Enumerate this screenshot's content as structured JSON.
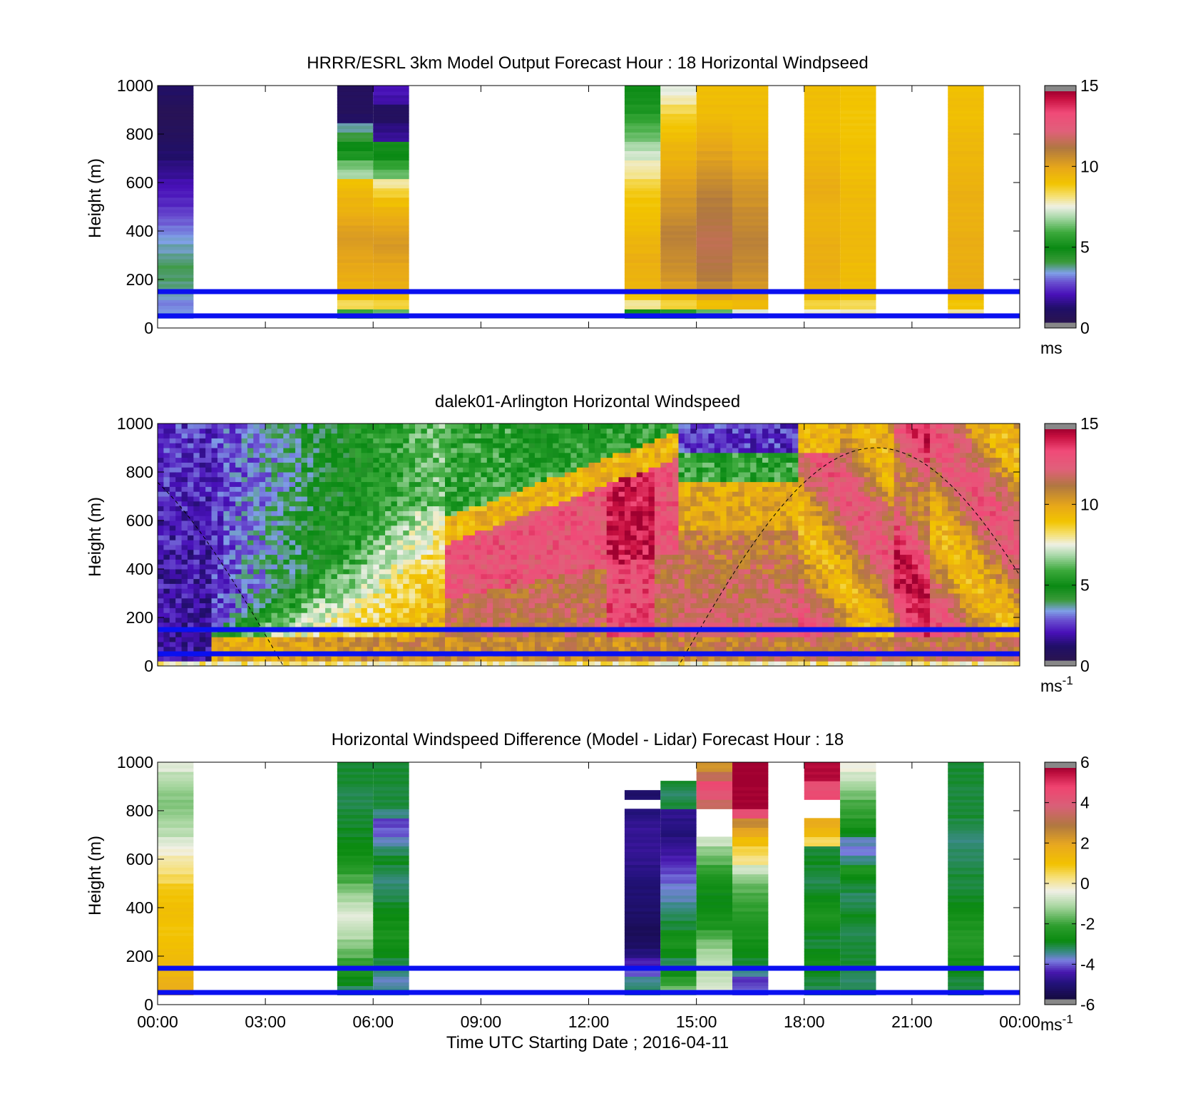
{
  "chart_data": [
    {
      "type": "heatmap",
      "title": "HRRR/ESRL 3km Model Output   Forecast Hour : 18 Horizontal Windpseed",
      "xlabel": "",
      "ylabel": "Height (m)",
      "xlim": [
        0,
        24
      ],
      "ylim": [
        0,
        1000
      ],
      "yticks": [
        "0",
        "200",
        "400",
        "600",
        "800",
        "1000"
      ],
      "colorbar": {
        "min": 0,
        "max": 15,
        "ticks": [
          "0",
          "5",
          "10",
          "15"
        ],
        "unit": "ms",
        "unit_sup": "",
        "scheme": "speed"
      },
      "reference_lines_m": [
        50,
        150
      ],
      "columns": [
        {
          "t0": 0.0,
          "t1": 1.0,
          "vals": [
            3.2,
            3.0,
            3.4,
            3.6,
            3.7,
            3.8,
            3.6,
            3.4,
            3.2,
            2.9,
            2.7,
            2.4,
            2.1,
            1.9,
            1.7,
            1.4,
            1.2,
            0.9,
            0.7,
            0.5,
            0.4,
            0.3,
            0.3,
            0.5,
            0.7
          ]
        },
        {
          "t0": 5.0,
          "t1": 6.0,
          "vals": [
            5.8,
            8.4,
            9.2,
            9.6,
            9.8,
            10.0,
            10.1,
            10.2,
            10.3,
            10.2,
            10.0,
            9.7,
            9.6,
            9.4,
            9.1,
            6.8,
            6.3,
            5.2,
            4.8,
            3.9,
            3.5,
            0.7,
            0.5,
            0.5,
            0.5
          ]
        },
        {
          "t0": 6.0,
          "t1": 7.0,
          "vals": [
            6.2,
            8.6,
            9.3,
            9.7,
            9.9,
            10.0,
            10.2,
            10.4,
            10.3,
            10.1,
            9.9,
            9.6,
            9.2,
            8.6,
            7.9,
            6.2,
            5.6,
            4.8,
            4.6,
            1.4,
            1.2,
            0.6,
            0.6,
            1.6,
            1.8
          ]
        },
        {
          "t0": 13.0,
          "t1": 14.0,
          "vals": [
            5.0,
            8.0,
            9.0,
            9.5,
            9.6,
            9.7,
            9.8,
            9.6,
            9.5,
            9.3,
            9.2,
            9.1,
            9.0,
            8.8,
            8.5,
            8.0,
            7.8,
            7.2,
            6.8,
            6.2,
            6.0,
            5.6,
            5.2,
            5.0,
            4.9
          ]
        },
        {
          "t0": 14.0,
          "t1": 15.0,
          "vals": [
            5.4,
            8.6,
            9.4,
            10.2,
            10.5,
            10.7,
            10.8,
            10.9,
            11.0,
            11.0,
            10.8,
            10.6,
            10.5,
            10.3,
            10.2,
            10.0,
            9.8,
            9.6,
            9.5,
            9.2,
            9.0,
            8.8,
            8.4,
            7.8,
            7.4
          ]
        },
        {
          "t0": 15.0,
          "t1": 16.0,
          "vals": [
            6.2,
            9.2,
            10.2,
            10.8,
            11.2,
            11.4,
            11.5,
            11.6,
            11.6,
            11.5,
            11.4,
            11.3,
            11.2,
            11.0,
            10.8,
            10.6,
            10.4,
            10.2,
            10.0,
            9.8,
            9.6,
            9.4,
            9.3,
            9.2,
            9.2
          ]
        },
        {
          "t0": 16.0,
          "t1": 17.0,
          "vals": [
            7.4,
            9.4,
            10.0,
            10.4,
            10.6,
            10.8,
            10.9,
            11.0,
            11.0,
            10.9,
            10.8,
            10.8,
            10.6,
            10.5,
            10.4,
            10.2,
            10.0,
            9.8,
            9.6,
            9.5,
            9.4,
            9.3,
            9.3,
            9.2,
            9.2
          ]
        },
        {
          "t0": 18.0,
          "t1": 19.0,
          "vals": [
            7.6,
            8.6,
            9.4,
            9.6,
            9.7,
            9.8,
            9.8,
            9.8,
            9.7,
            9.6,
            9.6,
            9.6,
            9.7,
            9.8,
            9.8,
            9.7,
            9.6,
            9.5,
            9.4,
            9.3,
            9.2,
            9.2,
            9.2,
            9.2,
            9.2
          ]
        },
        {
          "t0": 19.0,
          "t1": 20.0,
          "vals": [
            7.8,
            8.4,
            9.0,
            9.2,
            9.3,
            9.3,
            9.4,
            9.4,
            9.4,
            9.4,
            9.4,
            9.4,
            9.4,
            9.3,
            9.3,
            9.2,
            9.2,
            9.1,
            9.1,
            9.0,
            9.0,
            9.0,
            9.0,
            9.0,
            9.0
          ]
        },
        {
          "t0": 22.0,
          "t1": 23.0,
          "vals": [
            8.0,
            9.0,
            9.6,
            9.8,
            9.8,
            9.8,
            9.8,
            9.8,
            9.8,
            9.7,
            9.7,
            9.7,
            9.7,
            9.7,
            9.6,
            9.6,
            9.5,
            9.5,
            9.4,
            9.4,
            9.3,
            9.2,
            9.2,
            9.2,
            9.1
          ]
        }
      ]
    },
    {
      "type": "heatmap",
      "title": "dalek01-Arlington  Horizontal Windspeed",
      "xlabel": "",
      "ylabel": "Height (m)",
      "xlim": [
        0,
        24
      ],
      "ylim": [
        0,
        1000
      ],
      "yticks": [
        "0",
        "200",
        "400",
        "600",
        "800",
        "1000"
      ],
      "colorbar": {
        "min": 0,
        "max": 15,
        "ticks": [
          "0",
          "5",
          "10",
          "15"
        ],
        "unit": "ms",
        "unit_sup": "-1",
        "scheme": "speed"
      },
      "reference_lines_m": [
        50,
        150
      ],
      "model_field": "lidar-like time-height field: low speeds early, strong jet after 08:00, high level flow in the evening",
      "dashed_curve": {
        "peak_time": 20.0,
        "peak_height_m": 900,
        "zero_times": [
          2.5,
          13.5
        ]
      }
    },
    {
      "type": "heatmap",
      "title": "Horizontal Windspeed Difference (Model - Lidar) Forecast Hour : 18",
      "xlabel": "Time UTC  Starting Date ; 2016-04-11",
      "ylabel": "Height (m)",
      "xlim": [
        0,
        24
      ],
      "ylim": [
        0,
        1000
      ],
      "xticks": [
        "00:00",
        "03:00",
        "06:00",
        "09:00",
        "12:00",
        "15:00",
        "18:00",
        "21:00",
        "00:00"
      ],
      "yticks": [
        "0",
        "200",
        "400",
        "600",
        "800",
        "1000"
      ],
      "colorbar": {
        "min": -6,
        "max": 6,
        "ticks": [
          "-6",
          "-4",
          "-2",
          "0",
          "2",
          "4",
          "6"
        ],
        "unit": "ms",
        "unit_sup": "-1",
        "scheme": "diff"
      },
      "reference_lines_m": [
        50,
        150
      ],
      "columns": [
        {
          "t0": 0.0,
          "t1": 1.0,
          "vals": [
            1.8,
            1.7,
            1.5,
            1.3,
            1.2,
            1.1,
            1.0,
            1.0,
            1.1,
            1.1,
            1.0,
            0.9,
            0.5,
            0.2,
            0.0,
            -0.3,
            -0.6,
            -1.0,
            -1.2,
            -1.4,
            -1.5,
            -1.4,
            -1.2,
            -1.0,
            -0.6
          ]
        },
        {
          "t0": 5.0,
          "t1": 6.0,
          "vals": [
            -3.4,
            -3.0,
            -2.6,
            -2.2,
            -1.8,
            -1.4,
            -1.0,
            -0.8,
            -0.6,
            -0.9,
            -1.2,
            -1.6,
            -2.0,
            -2.4,
            -2.7,
            -2.9,
            -3.0,
            -3.1,
            -3.2,
            -3.2,
            -3.3,
            -3.3,
            -3.2,
            -3.2,
            -3.2
          ]
        },
        {
          "t0": 6.0,
          "t1": 7.0,
          "vals": [
            -3.6,
            -3.8,
            -3.5,
            -3.3,
            -3.0,
            -2.8,
            -2.6,
            -2.8,
            -3.0,
            -3.1,
            -3.3,
            -3.4,
            -3.5,
            -3.3,
            -3.1,
            -3.4,
            -3.8,
            -4.2,
            -4.4,
            -3.6,
            -3.2,
            -3.2,
            -3.2,
            -3.2,
            -3.2
          ]
        },
        {
          "t0": 13.0,
          "t1": 14.0,
          "vals": [
            -3.4,
            -3.6,
            -4.2,
            -4.6,
            -5.2,
            -5.5,
            -5.6,
            -5.6,
            -5.5,
            -5.4,
            -5.3,
            -5.3,
            -5.2,
            -5.1,
            -5.0,
            -4.9,
            -4.9,
            -4.9,
            -5.0,
            -5.2,
            null,
            -5.4,
            null,
            null,
            null
          ]
        },
        {
          "t0": 14.0,
          "t1": 15.0,
          "vals": [
            -1.6,
            -2.2,
            -2.8,
            -3.4,
            -3.0,
            -2.6,
            -2.8,
            -3.2,
            -3.4,
            -3.6,
            -3.8,
            -3.9,
            -4.2,
            -4.4,
            -4.6,
            -4.8,
            -5.0,
            -5.2,
            -5.1,
            -5.0,
            -3.2,
            -3.4,
            -3.2,
            null,
            null
          ]
        },
        {
          "t0": 15.0,
          "t1": 16.0,
          "vals": [
            -0.6,
            -0.8,
            -0.9,
            -1.0,
            -1.2,
            -1.5,
            -2.0,
            -2.6,
            -2.8,
            -3.0,
            -3.0,
            -2.8,
            -2.6,
            -2.2,
            -1.8,
            -1.4,
            -0.8,
            null,
            null,
            null,
            3.6,
            4.4,
            4.8,
            3.4,
            2.4
          ]
        },
        {
          "t0": 16.0,
          "t1": 17.0,
          "vals": [
            -4.2,
            -4.4,
            -3.6,
            -3.2,
            -3.0,
            -2.8,
            -2.6,
            -2.6,
            -2.4,
            -2.2,
            -2.0,
            -1.8,
            -1.4,
            -0.8,
            0.2,
            0.6,
            1.2,
            2.0,
            2.6,
            4.6,
            6.0,
            6.0,
            6.0,
            6.0,
            6.0
          ]
        },
        {
          "t0": 18.0,
          "t1": 19.0,
          "vals": [
            -3.3,
            -3.2,
            -3.0,
            -2.8,
            -3.0,
            -3.2,
            -3.1,
            -2.8,
            -2.6,
            -2.8,
            -3.0,
            -3.2,
            -3.3,
            -3.2,
            -3.1,
            -3.2,
            0.5,
            1.4,
            1.8,
            null,
            null,
            4.8,
            4.6,
            5.8,
            5.8
          ]
        },
        {
          "t0": 19.0,
          "t1": 20.0,
          "vals": [
            -3.3,
            -3.4,
            -3.3,
            -3.2,
            -3.2,
            -3.2,
            -3.3,
            -3.2,
            -3.1,
            -3.3,
            -3.4,
            -3.2,
            -3.0,
            -2.6,
            -3.6,
            -4.0,
            -3.8,
            -3.0,
            -2.6,
            -2.2,
            -2.0,
            -1.6,
            -1.2,
            -0.8,
            -0.4
          ]
        },
        {
          "t0": 22.0,
          "t1": 23.0,
          "vals": [
            -3.2,
            -3.2,
            -3.0,
            -2.8,
            -2.6,
            -2.4,
            -2.4,
            -2.6,
            -2.8,
            -3.0,
            -3.1,
            -3.2,
            -3.2,
            -3.3,
            -3.4,
            -3.4,
            -3.5,
            -3.4,
            -3.3,
            -3.2,
            -3.2,
            -3.2,
            -3.2,
            -3.2,
            -3.2
          ]
        }
      ]
    }
  ]
}
